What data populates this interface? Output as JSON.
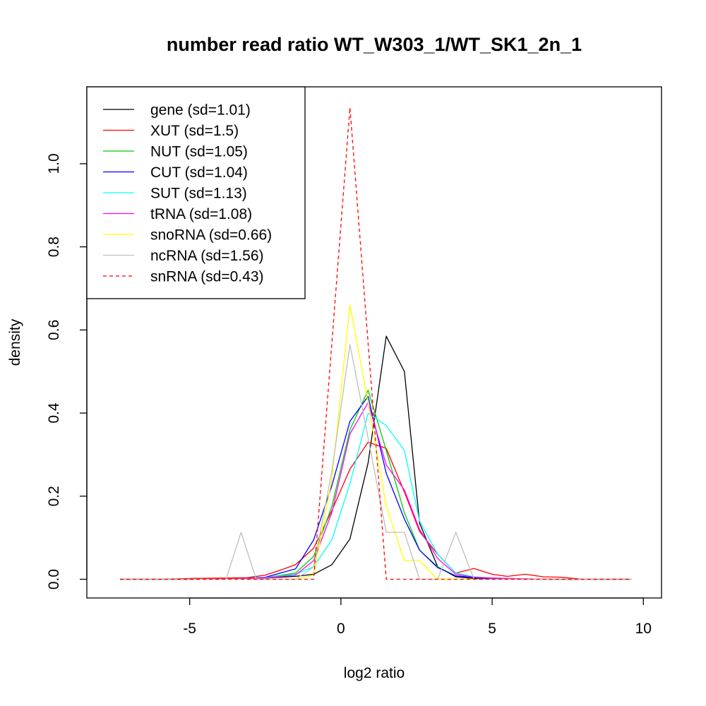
{
  "chart_data": {
    "type": "line",
    "title": "number read ratio WT_W303_1/WT_SK1_2n_1",
    "xlabel": "log2 ratio",
    "ylabel": "density",
    "xlim": [
      -8.4,
      10.6
    ],
    "ylim": [
      -0.045,
      1.185
    ],
    "xticks": [
      -5,
      0,
      5,
      10
    ],
    "yticks": [
      0.0,
      0.2,
      0.4,
      0.6,
      0.8,
      1.0
    ],
    "xtick_labels": [
      "-5",
      "0",
      "5",
      "10"
    ],
    "ytick_labels": [
      "0.0",
      "0.2",
      "0.4",
      "0.6",
      "0.8",
      "1.0"
    ],
    "grid": false,
    "legend_position": "top-left",
    "series": [
      {
        "name": "gene (sd=1.01)",
        "color": "#000000",
        "dashed": false,
        "x": [
          -7.3,
          -6.1,
          -4.9,
          -3.7,
          -2.5,
          -1.5,
          -0.9,
          -0.3,
          0.3,
          0.9,
          1.5,
          2.1,
          2.6,
          3.2,
          3.8,
          4.4,
          5.0,
          6.0,
          7.0,
          8.0,
          9.6
        ],
        "y": [
          0.0,
          0.0,
          0.0,
          0.001,
          0.003,
          0.007,
          0.012,
          0.035,
          0.097,
          0.28,
          0.585,
          0.5,
          0.135,
          0.03,
          0.006,
          0.002,
          0.001,
          0.0,
          0.0,
          0.0,
          0.0
        ]
      },
      {
        "name": "XUT (sd=1.5)",
        "color": "#ff0000",
        "dashed": false,
        "x": [
          -7.3,
          -6.1,
          -4.9,
          -3.7,
          -3.1,
          -2.5,
          -2.0,
          -1.5,
          -0.9,
          -0.3,
          0.3,
          0.9,
          1.5,
          2.1,
          2.6,
          3.2,
          3.8,
          4.4,
          5.0,
          5.5,
          6.1,
          6.7,
          7.3,
          8.0,
          9.6
        ],
        "y": [
          0.0,
          0.0,
          0.002,
          0.003,
          0.004,
          0.01,
          0.022,
          0.035,
          0.075,
          0.165,
          0.265,
          0.33,
          0.315,
          0.21,
          0.115,
          0.06,
          0.015,
          0.026,
          0.012,
          0.007,
          0.012,
          0.006,
          0.005,
          0.0,
          0.0
        ]
      },
      {
        "name": "NUT (sd=1.05)",
        "color": "#00cd00",
        "dashed": false,
        "x": [
          -7.3,
          -6.1,
          -4.9,
          -3.7,
          -2.5,
          -1.5,
          -0.9,
          -0.3,
          0.3,
          0.9,
          1.5,
          2.1,
          2.6,
          3.2,
          3.8,
          4.4,
          5.0,
          6.0,
          7.0,
          8.0,
          9.6
        ],
        "y": [
          0.0,
          0.0,
          0.0,
          0.001,
          0.004,
          0.015,
          0.055,
          0.175,
          0.36,
          0.455,
          0.31,
          0.16,
          0.07,
          0.03,
          0.008,
          0.004,
          0.002,
          0.001,
          0.0,
          0.0,
          0.0
        ]
      },
      {
        "name": "CUT (sd=1.04)",
        "color": "#0000ff",
        "dashed": false,
        "x": [
          -7.3,
          -6.1,
          -4.9,
          -3.7,
          -2.5,
          -1.5,
          -0.9,
          -0.3,
          0.3,
          0.9,
          1.5,
          2.1,
          2.6,
          3.2,
          3.8,
          4.4,
          5.0,
          6.0,
          7.0,
          8.0,
          9.6
        ],
        "y": [
          0.0,
          0.0,
          0.0,
          0.001,
          0.005,
          0.025,
          0.095,
          0.225,
          0.38,
          0.44,
          0.255,
          0.145,
          0.07,
          0.028,
          0.008,
          0.004,
          0.002,
          0.001,
          0.0,
          0.0,
          0.0
        ]
      },
      {
        "name": "SUT (sd=1.13)",
        "color": "#00ffff",
        "dashed": false,
        "x": [
          -7.3,
          -6.1,
          -4.9,
          -3.7,
          -2.5,
          -1.5,
          -0.9,
          -0.3,
          0.3,
          0.9,
          1.5,
          2.1,
          2.6,
          3.2,
          3.8,
          4.4,
          5.0,
          6.0,
          7.0,
          8.0,
          9.6
        ],
        "y": [
          0.0,
          0.0,
          0.0,
          0.001,
          0.004,
          0.012,
          0.03,
          0.095,
          0.23,
          0.4,
          0.37,
          0.31,
          0.14,
          0.06,
          0.015,
          0.006,
          0.003,
          0.001,
          0.0,
          0.0,
          0.0
        ]
      },
      {
        "name": "tRNA (sd=1.08)",
        "color": "#ff00ff",
        "dashed": false,
        "x": [
          -7.3,
          -6.1,
          -4.9,
          -3.7,
          -2.5,
          -1.5,
          -0.9,
          -0.3,
          0.3,
          0.9,
          1.5,
          2.1,
          2.6,
          3.2,
          3.8,
          4.4,
          5.0,
          6.0,
          7.0,
          8.0,
          9.6
        ],
        "y": [
          0.0,
          0.0,
          0.0,
          0.001,
          0.003,
          0.01,
          0.045,
          0.16,
          0.35,
          0.425,
          0.275,
          0.215,
          0.12,
          0.05,
          0.012,
          0.005,
          0.003,
          0.001,
          0.0,
          0.0,
          0.0
        ]
      },
      {
        "name": "snoRNA (sd=0.66)",
        "color": "#ffff00",
        "dashed": false,
        "x": [
          -7.3,
          -1.5,
          -0.9,
          -0.3,
          0.3,
          0.9,
          1.5,
          2.1,
          2.6,
          3.2,
          9.6
        ],
        "y": [
          0.0,
          0.0,
          0.01,
          0.24,
          0.66,
          0.425,
          0.175,
          0.045,
          0.045,
          0.0,
          0.0
        ]
      },
      {
        "name": "ncRNA (sd=1.56)",
        "color": "#bebebe",
        "dashed": false,
        "x": [
          -7.3,
          -3.8,
          -3.3,
          -2.8,
          -1.5,
          -0.9,
          -0.3,
          0.3,
          0.9,
          1.5,
          2.1,
          2.6,
          3.2,
          3.8,
          4.4,
          9.6
        ],
        "y": [
          0.0,
          0.0,
          0.113,
          0.0,
          0.0,
          0.03,
          0.26,
          0.565,
          0.34,
          0.113,
          0.113,
          0.0,
          0.0,
          0.113,
          0.0,
          0.0
        ]
      },
      {
        "name": "snRNA (sd=0.43)",
        "color": "#ff0000",
        "dashed": true,
        "x": [
          -7.3,
          -0.9,
          0.3,
          1.5,
          9.6
        ],
        "y": [
          0.0,
          0.0,
          1.135,
          0.0,
          0.0
        ]
      }
    ]
  }
}
